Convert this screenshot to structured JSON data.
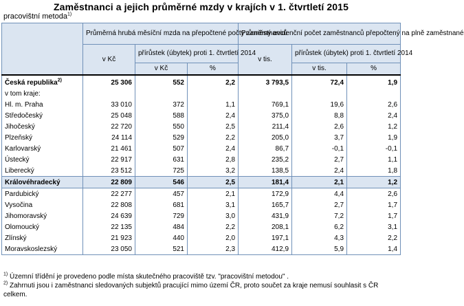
{
  "title": "Zaměstnanci a jejich průměrné mzdy v krajích v 1. čtvrtletí 2015",
  "subtitle": {
    "text": "pracovištní metoda",
    "sup": "1)"
  },
  "header": {
    "group1": "Průměrná hrubá měsíční mzda na přepočtené počty zaměstnanců",
    "group2": "Průměrný evidenční počet zaměstnanců přepočtený na plně zaměstnané",
    "v_kc": "v Kč",
    "v_tis": "v tis.",
    "prirustek": "přírůstek (úbytek) proti 1. čtvrtletí 2014",
    "sub_v_kc": "v Kč",
    "sub_v_tis": "v tis.",
    "pct1": "%",
    "pct2": "%"
  },
  "rows": [
    {
      "name": "Česká republika",
      "sup": "2)",
      "wage": "25 306",
      "wage_diff": "552",
      "wage_pct": "2,2",
      "emp": "3 793,5",
      "emp_diff": "72,4",
      "emp_pct": "1,9"
    },
    {
      "name": "v tom kraje:",
      "wage": "",
      "wage_diff": "",
      "wage_pct": "",
      "emp": "",
      "emp_diff": "",
      "emp_pct": ""
    },
    {
      "name": "Hl. m. Praha",
      "wage": "33 010",
      "wage_diff": "372",
      "wage_pct": "1,1",
      "emp": "769,1",
      "emp_diff": "19,6",
      "emp_pct": "2,6"
    },
    {
      "name": "Středočeský",
      "wage": "25 048",
      "wage_diff": "588",
      "wage_pct": "2,4",
      "emp": "375,0",
      "emp_diff": "8,8",
      "emp_pct": "2,4"
    },
    {
      "name": "Jihočeský",
      "wage": "22 720",
      "wage_diff": "550",
      "wage_pct": "2,5",
      "emp": "211,4",
      "emp_diff": "2,6",
      "emp_pct": "1,2"
    },
    {
      "name": "Plzeňský",
      "wage": "24 114",
      "wage_diff": "529",
      "wage_pct": "2,2",
      "emp": "205,0",
      "emp_diff": "3,7",
      "emp_pct": "1,9"
    },
    {
      "name": "Karlovarský",
      "wage": "21 461",
      "wage_diff": "507",
      "wage_pct": "2,4",
      "emp": "86,7",
      "emp_diff": "-0,1",
      "emp_pct": "-0,1"
    },
    {
      "name": "Ústecký",
      "wage": "22 917",
      "wage_diff": "631",
      "wage_pct": "2,8",
      "emp": "235,2",
      "emp_diff": "2,7",
      "emp_pct": "1,1"
    },
    {
      "name": "Liberecký",
      "wage": "23 512",
      "wage_diff": "725",
      "wage_pct": "3,2",
      "emp": "138,5",
      "emp_diff": "2,4",
      "emp_pct": "1,8"
    },
    {
      "name": "Královéhradecký",
      "wage": "22 809",
      "wage_diff": "546",
      "wage_pct": "2,5",
      "emp": "181,4",
      "emp_diff": "2,1",
      "emp_pct": "1,2"
    },
    {
      "name": "Pardubický",
      "wage": "22 277",
      "wage_diff": "457",
      "wage_pct": "2,1",
      "emp": "172,9",
      "emp_diff": "4,4",
      "emp_pct": "2,6"
    },
    {
      "name": "Vysočina",
      "wage": "22 808",
      "wage_diff": "681",
      "wage_pct": "3,1",
      "emp": "165,7",
      "emp_diff": "2,7",
      "emp_pct": "1,7"
    },
    {
      "name": "Jihomoravský",
      "wage": "24 639",
      "wage_diff": "729",
      "wage_pct": "3,0",
      "emp": "431,9",
      "emp_diff": "7,2",
      "emp_pct": "1,7"
    },
    {
      "name": "Olomoucký",
      "wage": "22 135",
      "wage_diff": "484",
      "wage_pct": "2,2",
      "emp": "208,1",
      "emp_diff": "6,2",
      "emp_pct": "3,1"
    },
    {
      "name": "Zlínský",
      "wage": "21 923",
      "wage_diff": "440",
      "wage_pct": "2,0",
      "emp": "197,1",
      "emp_diff": "4,3",
      "emp_pct": "2,2"
    },
    {
      "name": "Moravskoslezský",
      "wage": "23 050",
      "wage_diff": "521",
      "wage_pct": "2,3",
      "emp": "412,9",
      "emp_diff": "5,9",
      "emp_pct": "1,4"
    }
  ],
  "notes": [
    {
      "sup": "1)",
      "text": "Územní třídění je provedeno podle místa skutečného pracoviště tzv. \"pracovištní metodou\" ."
    },
    {
      "sup": "2)",
      "text": "Zahrnuti jsou i zaměstnanci sledovaných subjektů pracující mimo území ČR, proto součet za kraje nemusí souhlasit s ČR celkem."
    }
  ],
  "colors": {
    "header_bg": "#dbe5f1",
    "border": "#6f90b8"
  }
}
